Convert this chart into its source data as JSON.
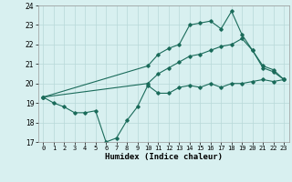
{
  "xlabel": "Humidex (Indice chaleur)",
  "ylabel": "",
  "xlim": [
    -0.5,
    23.5
  ],
  "ylim": [
    17,
    24
  ],
  "yticks": [
    17,
    18,
    19,
    20,
    21,
    22,
    23,
    24
  ],
  "xticks": [
    0,
    1,
    2,
    3,
    4,
    5,
    6,
    7,
    8,
    9,
    10,
    11,
    12,
    13,
    14,
    15,
    16,
    17,
    18,
    19,
    20,
    21,
    22,
    23
  ],
  "line_color": "#1a6b5a",
  "bg_color": "#d8f0f0",
  "grid_color": "#b8d8d8",
  "line1_x": [
    0,
    1,
    2,
    3,
    4,
    5,
    6,
    7,
    8,
    9,
    10,
    11,
    12,
    13,
    14,
    15,
    16,
    17,
    18,
    19,
    20,
    21,
    22,
    23
  ],
  "line1_y": [
    19.3,
    19.0,
    18.8,
    18.5,
    18.5,
    18.6,
    17.0,
    17.2,
    18.1,
    18.8,
    19.9,
    19.5,
    19.5,
    19.8,
    19.9,
    19.8,
    20.0,
    19.8,
    20.0,
    20.0,
    20.1,
    20.2,
    20.1,
    20.2
  ],
  "line2_x": [
    0,
    10,
    11,
    12,
    13,
    14,
    15,
    16,
    17,
    18,
    19,
    20,
    21,
    22,
    23
  ],
  "line2_y": [
    19.3,
    20.9,
    21.5,
    21.8,
    22.0,
    23.0,
    23.1,
    23.2,
    22.8,
    23.7,
    22.5,
    21.7,
    20.8,
    20.6,
    20.2
  ],
  "line3_x": [
    0,
    10,
    11,
    12,
    13,
    14,
    15,
    16,
    17,
    18,
    19,
    20,
    21,
    22,
    23
  ],
  "line3_y": [
    19.3,
    20.0,
    20.5,
    20.8,
    21.1,
    21.4,
    21.5,
    21.7,
    21.9,
    22.0,
    22.3,
    21.7,
    20.9,
    20.7,
    20.2
  ]
}
